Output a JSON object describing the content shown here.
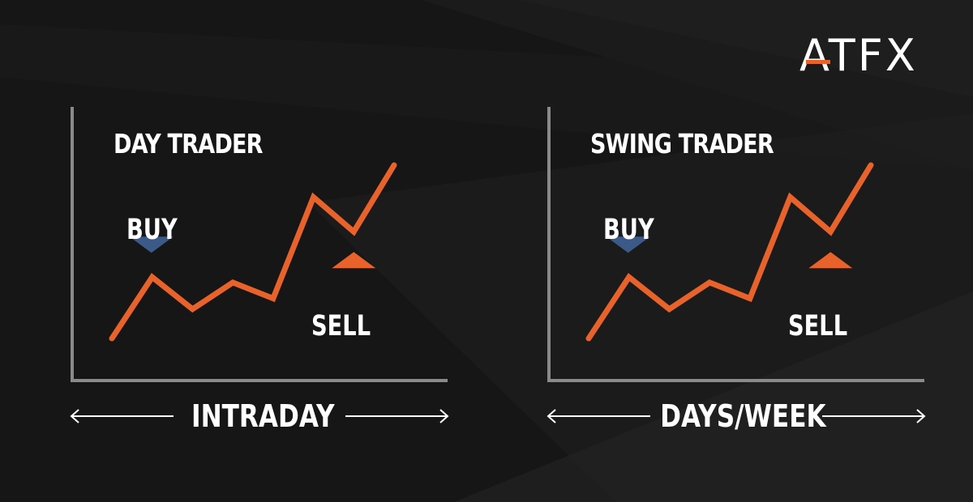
{
  "brand": {
    "logo_text": "ATFX",
    "accent_color": "#e8622c"
  },
  "colors": {
    "background": "#141414",
    "price_line": "#e8622c",
    "buy_marker": "#3c5a88",
    "sell_marker": "#e8622c",
    "axis": "#8a8a8a",
    "text": "#ffffff"
  },
  "panels": [
    {
      "title": "DAY TRADER",
      "buy_label": "BUY",
      "sell_label": "SELL",
      "timeframe_label": "INTRADAY",
      "buy_point_index": 1,
      "sell_point_index": 6
    },
    {
      "title": "SWING TRADER",
      "buy_label": "BUY",
      "sell_label": "SELL",
      "timeframe_label": "DAYS/WEEK",
      "buy_point_index": 1,
      "sell_point_index": 6
    }
  ],
  "chart_data": [
    {
      "type": "line",
      "title": "DAY TRADER",
      "xlabel": "INTRADAY",
      "ylabel": "",
      "x": [
        0,
        1,
        2,
        3,
        4,
        5,
        6,
        7
      ],
      "series": [
        {
          "values": [
            1.5,
            3.8,
            2.6,
            3.6,
            3.0,
            6.8,
            5.5,
            8.0
          ]
        }
      ],
      "annotations": [
        {
          "label": "BUY",
          "marker": "down-triangle",
          "color": "#3c5a88",
          "at_index": 1
        },
        {
          "label": "SELL",
          "marker": "up-triangle",
          "color": "#e8622c",
          "at_index": 6
        }
      ],
      "grid": false
    },
    {
      "type": "line",
      "title": "SWING TRADER",
      "xlabel": "DAYS/WEEK",
      "ylabel": "",
      "x": [
        0,
        1,
        2,
        3,
        4,
        5,
        6,
        7
      ],
      "series": [
        {
          "values": [
            1.5,
            3.8,
            2.6,
            3.6,
            3.0,
            6.8,
            5.5,
            8.0
          ]
        }
      ],
      "annotations": [
        {
          "label": "BUY",
          "marker": "down-triangle",
          "color": "#3c5a88",
          "at_index": 1
        },
        {
          "label": "SELL",
          "marker": "up-triangle",
          "color": "#e8622c",
          "at_index": 6
        }
      ],
      "grid": false
    }
  ]
}
